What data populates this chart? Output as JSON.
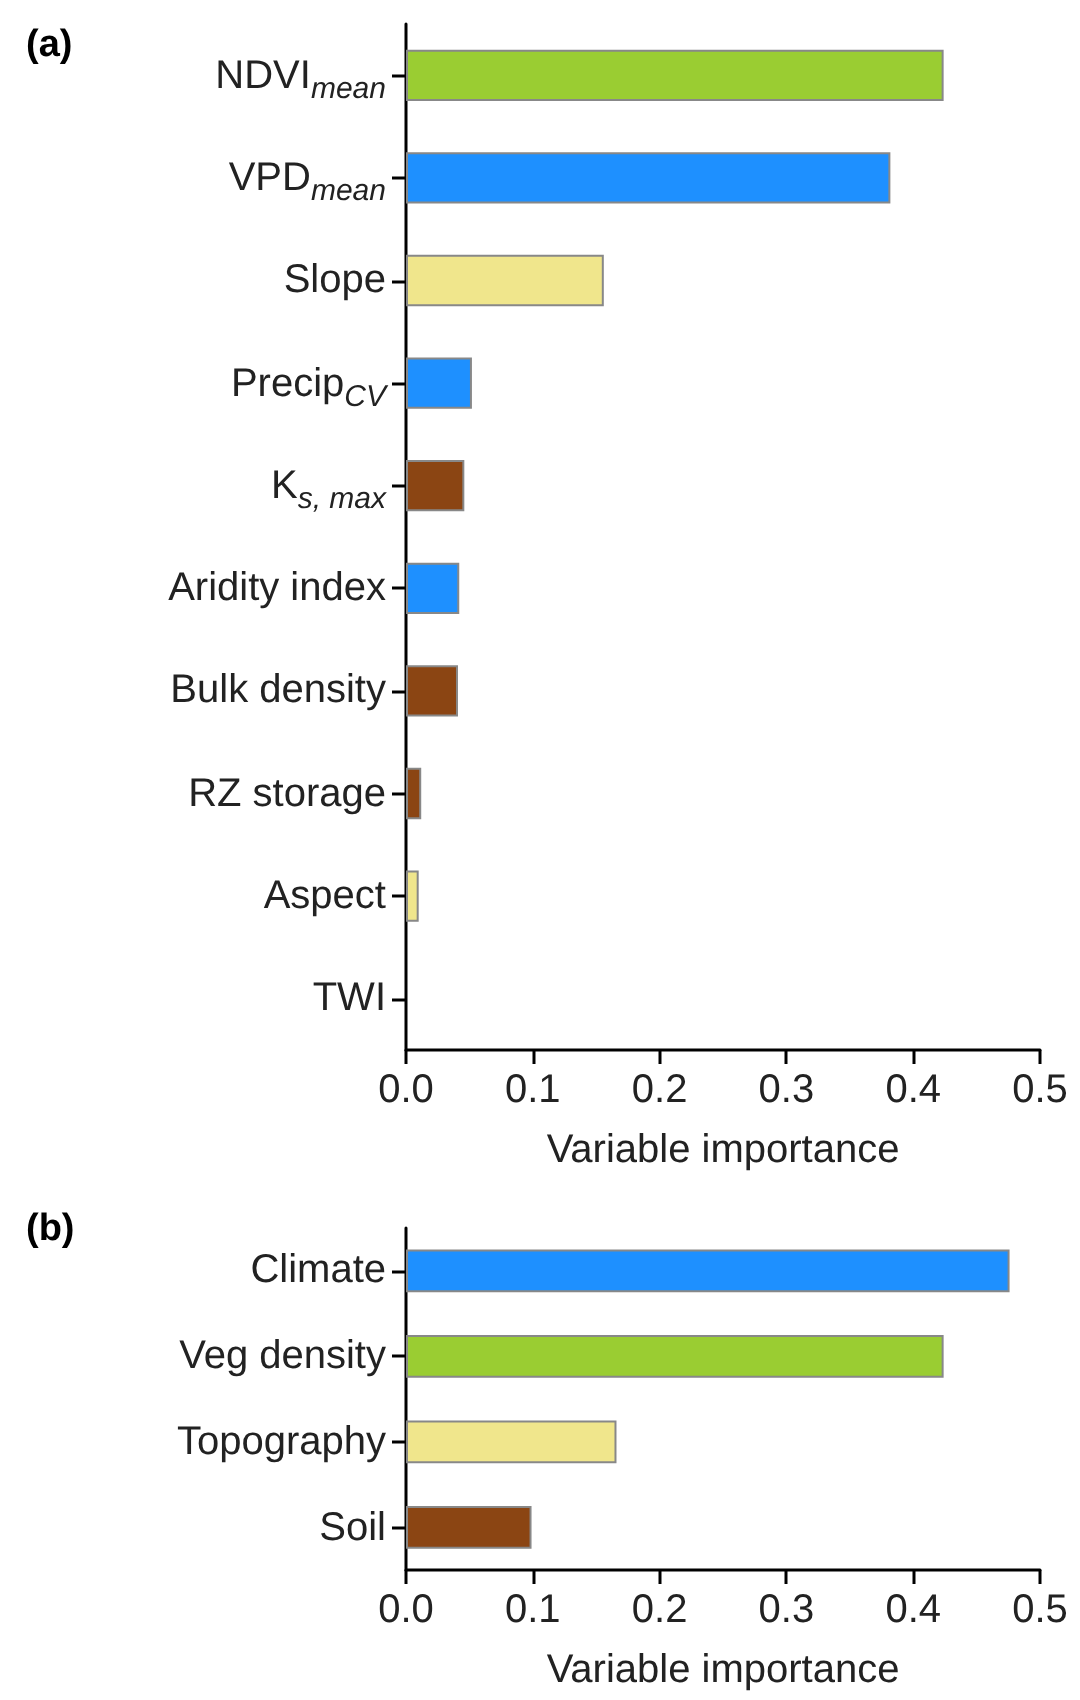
{
  "chart_data": [
    {
      "type": "bar",
      "title": "(a)",
      "orientation": "horizontal",
      "xlabel": "Variable importance",
      "categories": [
        "NDVI$_{mean}$",
        "VPD$_{mean}$",
        "Slope",
        "Precip$_{CV}$",
        "K$_{s, max}$",
        "Aridity index",
        "Bulk density",
        "RZ storage",
        "Aspect",
        "TWI"
      ],
      "values": [
        0.424,
        0.382,
        0.156,
        0.052,
        0.046,
        0.042,
        0.041,
        0.012,
        0.01,
        0
      ],
      "colors": [
        "#9acd32",
        "#1e90ff",
        "#f0e68c",
        "#1e90ff",
        "#8b4513",
        "#1e90ff",
        "#8b4513",
        "#8b4513",
        "#f0e68c",
        "#8b4513"
      ],
      "xlim": [
        0,
        0.5
      ],
      "xticks": [
        {
          "value": 0,
          "label": "0.0"
        },
        0.1,
        0.2,
        0.3,
        0.4,
        0.5
      ],
      "grid": false
    },
    {
      "type": "bar",
      "title": "(b)",
      "orientation": "horizontal",
      "xlabel": "Variable importance",
      "categories": [
        "Climate",
        "Veg density",
        "Topography",
        "Soil"
      ],
      "values": [
        0.476,
        0.424,
        0.166,
        0.099
      ],
      "colors": [
        "#1e90ff",
        "#9acd32",
        "#f0e68c",
        "#8b4513"
      ],
      "xlim": [
        0,
        0.5
      ],
      "xticks": [
        {
          "value": 0,
          "label": "0.0"
        },
        0.1,
        0.2,
        0.3,
        0.4,
        0.5
      ],
      "grid": false
    }
  ]
}
